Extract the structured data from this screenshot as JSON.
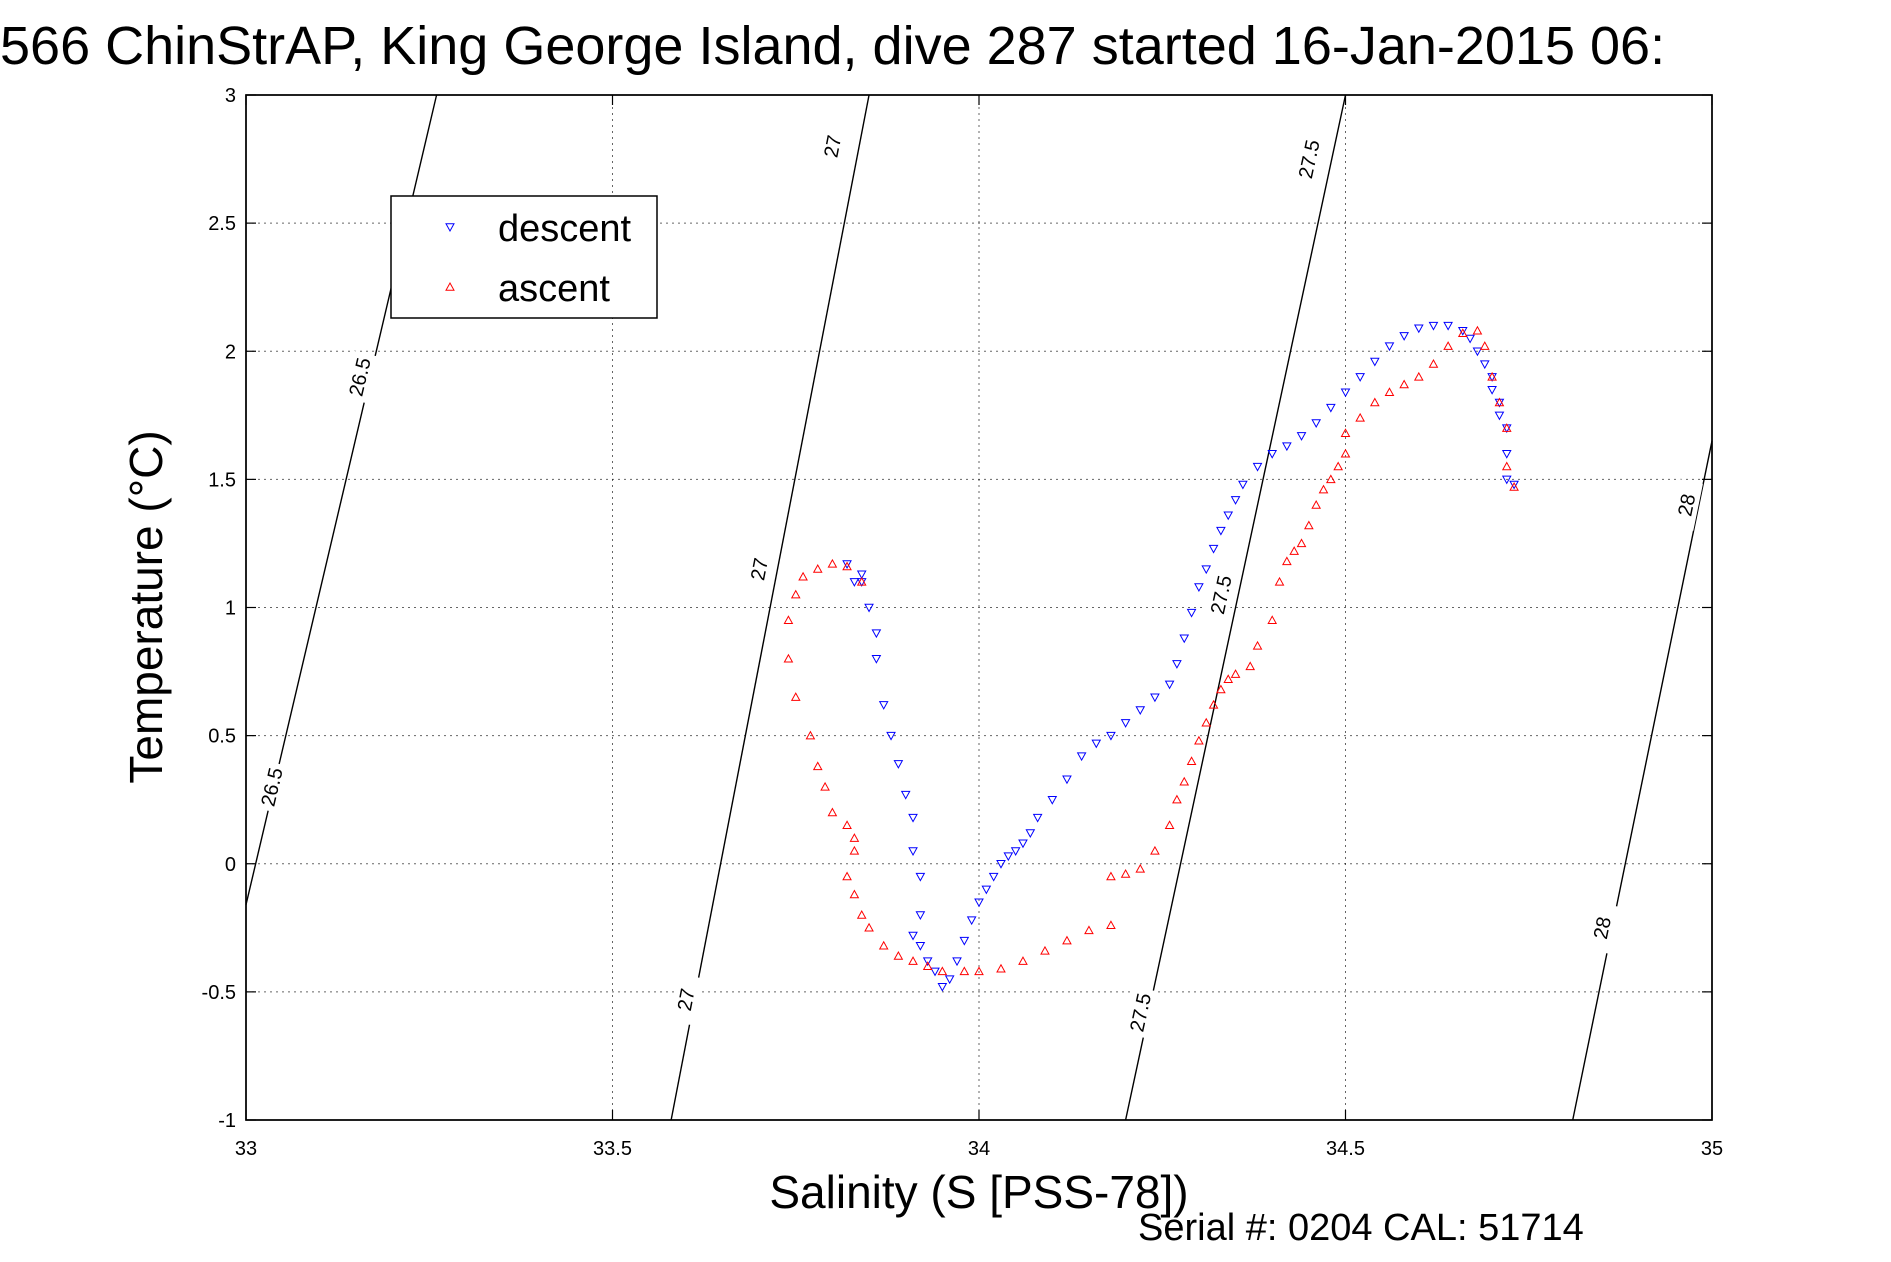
{
  "chart_data": {
    "type": "scatter",
    "title": "566 ChinStrAP, King George Island, dive 287 started 16-Jan-2015 06:",
    "xlabel": "Salinity (S [PSS-78])",
    "ylabel": "Temperature (°C)",
    "xlim": [
      33,
      35
    ],
    "ylim": [
      -1,
      3
    ],
    "x_ticks": [
      33,
      33.5,
      34,
      34.5,
      35
    ],
    "x_tick_labels": [
      "33",
      "33.5",
      "34",
      "34.5",
      "35"
    ],
    "y_ticks": [
      -1,
      -0.5,
      0,
      0.5,
      1,
      1.5,
      2,
      2.5,
      3
    ],
    "y_tick_labels": [
      "-1",
      "-0.5",
      "0",
      "0.5",
      "1",
      "1.5",
      "2",
      "2.5",
      "3"
    ],
    "grid": true,
    "legend_position": "top-left",
    "footer": "Serial #: 0204  CAL: 51714",
    "contours": [
      {
        "label": "26.5",
        "x": [
          33.0,
          33.26
        ],
        "y": [
          -0.16,
          3.0
        ],
        "label_points": [
          [
            33.035,
            0.3
          ],
          [
            33.155,
            1.9
          ]
        ]
      },
      {
        "label": "27",
        "x": [
          33.58,
          33.85
        ],
        "y": [
          -1.0,
          3.0
        ],
        "label_points": [
          [
            33.6,
            -0.53
          ],
          [
            33.7,
            1.15
          ],
          [
            33.8,
            2.8
          ]
        ]
      },
      {
        "label": "27.5",
        "x": [
          34.2,
          34.5
        ],
        "y": [
          -1.0,
          3.0
        ],
        "label_points": [
          [
            34.22,
            -0.58
          ],
          [
            34.33,
            1.05
          ],
          [
            34.45,
            2.75
          ]
        ]
      },
      {
        "label": "28",
        "x": [
          34.81,
          35.0
        ],
        "y": [
          -1.0,
          1.65
        ],
        "label_points": [
          [
            34.85,
            -0.25
          ],
          [
            34.965,
            1.4
          ]
        ]
      }
    ],
    "series": [
      {
        "name": "descent",
        "color": "#0000ff",
        "marker": "triangle-down",
        "x": [
          33.82,
          33.83,
          33.84,
          33.84,
          33.85,
          33.86,
          33.86,
          33.87,
          33.88,
          33.89,
          33.9,
          33.91,
          33.91,
          33.92,
          33.92,
          33.91,
          33.92,
          33.93,
          33.94,
          33.95,
          33.96,
          33.97,
          33.98,
          33.99,
          34.0,
          34.01,
          34.02,
          34.03,
          34.04,
          34.05,
          34.06,
          34.07,
          34.08,
          34.1,
          34.12,
          34.14,
          34.16,
          34.18,
          34.2,
          34.22,
          34.24,
          34.26,
          34.27,
          34.28,
          34.29,
          34.3,
          34.31,
          34.32,
          34.33,
          34.34,
          34.35,
          34.36,
          34.38,
          34.4,
          34.42,
          34.44,
          34.46,
          34.48,
          34.5,
          34.52,
          34.54,
          34.56,
          34.58,
          34.6,
          34.62,
          34.64,
          34.66,
          34.67,
          34.68,
          34.69,
          34.7,
          34.7,
          34.71,
          34.71,
          34.72,
          34.72,
          34.72,
          34.73
        ],
        "y": [
          1.17,
          1.1,
          1.1,
          1.13,
          1.0,
          0.9,
          0.8,
          0.62,
          0.5,
          0.39,
          0.27,
          0.18,
          0.05,
          -0.05,
          -0.2,
          -0.28,
          -0.32,
          -0.38,
          -0.42,
          -0.48,
          -0.45,
          -0.38,
          -0.3,
          -0.22,
          -0.15,
          -0.1,
          -0.05,
          0.0,
          0.03,
          0.05,
          0.08,
          0.12,
          0.18,
          0.25,
          0.33,
          0.42,
          0.47,
          0.5,
          0.55,
          0.6,
          0.65,
          0.7,
          0.78,
          0.88,
          0.98,
          1.08,
          1.15,
          1.23,
          1.3,
          1.36,
          1.42,
          1.48,
          1.55,
          1.6,
          1.63,
          1.67,
          1.72,
          1.78,
          1.84,
          1.9,
          1.96,
          2.02,
          2.06,
          2.09,
          2.1,
          2.1,
          2.08,
          2.05,
          2.0,
          1.95,
          1.9,
          1.85,
          1.8,
          1.75,
          1.7,
          1.6,
          1.5,
          1.48
        ]
      },
      {
        "name": "ascent",
        "color": "#ff0000",
        "marker": "triangle-up",
        "x": [
          33.84,
          33.82,
          33.8,
          33.78,
          33.76,
          33.75,
          33.74,
          33.74,
          33.75,
          33.77,
          33.78,
          33.79,
          33.8,
          33.82,
          33.83,
          33.83,
          33.82,
          33.83,
          33.84,
          33.85,
          33.87,
          33.89,
          33.91,
          33.93,
          33.95,
          33.98,
          34.0,
          34.03,
          34.06,
          34.09,
          34.12,
          34.15,
          34.18,
          34.18,
          34.2,
          34.22,
          34.24,
          34.26,
          34.27,
          34.28,
          34.29,
          34.3,
          34.31,
          34.32,
          34.33,
          34.34,
          34.35,
          34.37,
          34.38,
          34.4,
          34.41,
          34.42,
          34.43,
          34.44,
          34.45,
          34.46,
          34.47,
          34.48,
          34.49,
          34.5,
          34.5,
          34.52,
          34.54,
          34.56,
          34.58,
          34.6,
          34.62,
          34.64,
          34.66,
          34.68,
          34.69,
          34.7,
          34.71,
          34.72,
          34.72,
          34.73
        ],
        "y": [
          1.1,
          1.16,
          1.17,
          1.15,
          1.12,
          1.05,
          0.95,
          0.8,
          0.65,
          0.5,
          0.38,
          0.3,
          0.2,
          0.15,
          0.1,
          0.05,
          -0.05,
          -0.12,
          -0.2,
          -0.25,
          -0.32,
          -0.36,
          -0.38,
          -0.4,
          -0.42,
          -0.42,
          -0.42,
          -0.41,
          -0.38,
          -0.34,
          -0.3,
          -0.26,
          -0.24,
          -0.05,
          -0.04,
          -0.02,
          0.05,
          0.15,
          0.25,
          0.32,
          0.4,
          0.48,
          0.55,
          0.62,
          0.68,
          0.72,
          0.74,
          0.77,
          0.85,
          0.95,
          1.1,
          1.18,
          1.22,
          1.25,
          1.32,
          1.4,
          1.46,
          1.5,
          1.55,
          1.6,
          1.68,
          1.74,
          1.8,
          1.84,
          1.87,
          1.9,
          1.95,
          2.02,
          2.07,
          2.08,
          2.02,
          1.9,
          1.8,
          1.7,
          1.55,
          1.47
        ]
      }
    ]
  }
}
